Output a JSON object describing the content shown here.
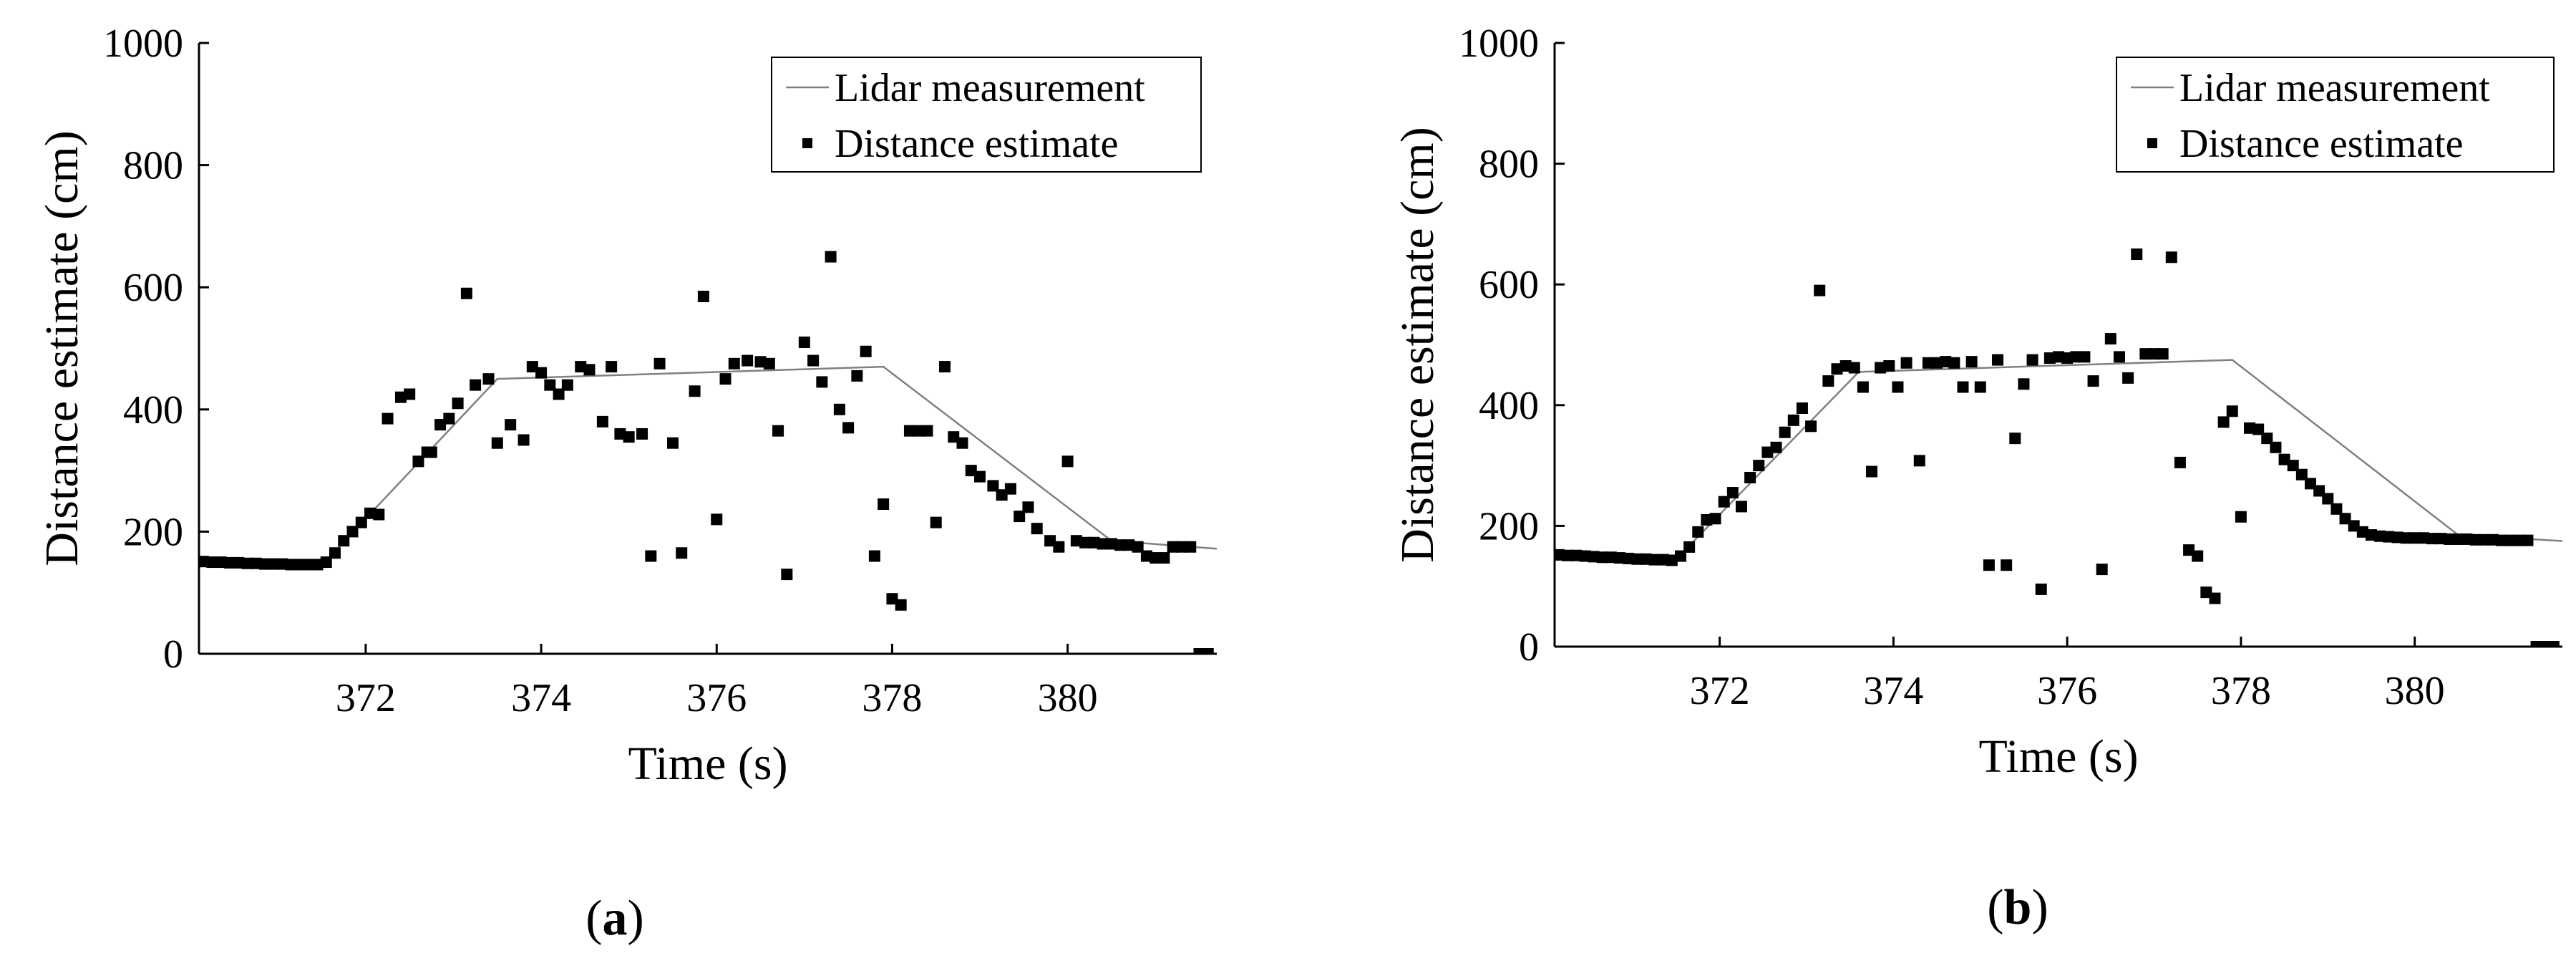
{
  "chart_data": [
    {
      "type": "scatter",
      "panel_label": "a",
      "xlabel": "Time (s)",
      "ylabel": "Distance estimate (cm)",
      "xlim": [
        370.1,
        381.7
      ],
      "ylim": [
        0,
        1000
      ],
      "xticks": [
        372,
        374,
        376,
        378,
        380
      ],
      "yticks": [
        0,
        200,
        400,
        600,
        800,
        1000
      ],
      "grid": false,
      "legend_position": "top-right",
      "series": [
        {
          "name": "Lidar measurement",
          "kind": "line",
          "color": "#808080",
          "x": [
            370.1,
            371.5,
            373.5,
            377.9,
            380.5,
            381.7
          ],
          "y": [
            152,
            145,
            450,
            470,
            185,
            172
          ]
        },
        {
          "name": "Distance estimate",
          "kind": "marker",
          "color": "#000000",
          "x": [
            370.15,
            370.25,
            370.35,
            370.45,
            370.55,
            370.65,
            370.75,
            370.85,
            370.95,
            371.05,
            371.15,
            371.25,
            371.35,
            371.45,
            371.55,
            371.65,
            371.75,
            371.85,
            371.95,
            372.05,
            372.15,
            372.25,
            372.4,
            372.5,
            372.6,
            372.7,
            372.75,
            372.85,
            372.95,
            373.05,
            373.15,
            373.25,
            373.4,
            373.5,
            373.65,
            373.8,
            373.9,
            374.0,
            374.1,
            374.2,
            374.3,
            374.45,
            374.55,
            374.7,
            374.8,
            374.9,
            375.0,
            375.15,
            375.25,
            375.35,
            375.5,
            375.6,
            375.75,
            375.85,
            376.0,
            376.1,
            376.2,
            376.35,
            376.5,
            376.6,
            376.7,
            376.8,
            377.0,
            377.1,
            377.2,
            377.3,
            377.4,
            377.5,
            377.6,
            377.7,
            377.8,
            377.9,
            378.0,
            378.1,
            378.2,
            378.3,
            378.4,
            378.5,
            378.6,
            378.7,
            378.8,
            378.9,
            379.0,
            379.15,
            379.25,
            379.35,
            379.45,
            379.55,
            379.65,
            379.8,
            379.9,
            380.0,
            380.1,
            380.2,
            380.3,
            380.4,
            380.5,
            380.6,
            380.7,
            380.8,
            380.9,
            381.0,
            381.1,
            381.2,
            381.3,
            381.4,
            381.5,
            381.6
          ],
          "y": [
            151,
            150,
            150,
            149,
            149,
            148,
            148,
            147,
            147,
            147,
            146,
            146,
            146,
            146,
            150,
            165,
            185,
            200,
            215,
            230,
            228,
            385,
            420,
            425,
            315,
            330,
            330,
            375,
            385,
            410,
            590,
            440,
            450,
            345,
            375,
            350,
            470,
            460,
            440,
            425,
            440,
            470,
            465,
            380,
            470,
            360,
            355,
            360,
            160,
            475,
            345,
            165,
            430,
            585,
            220,
            450,
            475,
            480,
            478,
            475,
            365,
            130,
            510,
            480,
            445,
            650,
            400,
            370,
            455,
            495,
            160,
            245,
            90,
            80,
            365,
            365,
            365,
            215,
            470,
            355,
            345,
            300,
            290,
            275,
            260,
            270,
            225,
            240,
            205,
            185,
            175,
            315,
            185,
            182,
            182,
            180,
            180,
            178,
            178,
            175,
            160,
            157,
            157,
            175,
            175,
            175,
            0,
            0
          ]
        }
      ]
    },
    {
      "type": "scatter",
      "panel_label": "b",
      "xlabel": "Time (s)",
      "ylabel": "Distance estimate (cm)",
      "xlim": [
        370.1,
        381.7
      ],
      "ylim": [
        0,
        1000
      ],
      "xticks": [
        372,
        374,
        376,
        378,
        380
      ],
      "yticks": [
        0,
        200,
        400,
        600,
        800,
        1000
      ],
      "grid": false,
      "legend_position": "top-right",
      "series": [
        {
          "name": "Lidar measurement",
          "kind": "line",
          "color": "#808080",
          "x": [
            370.1,
            371.5,
            373.6,
            377.9,
            380.5,
            381.7
          ],
          "y": [
            152,
            145,
            455,
            475,
            185,
            175
          ]
        },
        {
          "name": "Distance estimate",
          "kind": "marker",
          "color": "#000000",
          "x": [
            370.15,
            370.25,
            370.35,
            370.45,
            370.55,
            370.65,
            370.75,
            370.85,
            370.95,
            371.05,
            371.15,
            371.25,
            371.35,
            371.45,
            371.55,
            371.65,
            371.75,
            371.85,
            371.95,
            372.05,
            372.15,
            372.25,
            372.35,
            372.45,
            372.55,
            372.65,
            372.75,
            372.85,
            372.95,
            373.05,
            373.15,
            373.25,
            373.35,
            373.45,
            373.55,
            373.65,
            373.75,
            373.85,
            373.95,
            374.05,
            374.15,
            374.3,
            374.4,
            374.5,
            374.6,
            374.7,
            374.8,
            374.9,
            375.0,
            375.1,
            375.2,
            375.3,
            375.4,
            375.5,
            375.6,
            375.7,
            375.8,
            375.9,
            376.0,
            376.1,
            376.2,
            376.3,
            376.4,
            376.5,
            376.6,
            376.7,
            376.8,
            376.9,
            377.0,
            377.1,
            377.2,
            377.3,
            377.4,
            377.5,
            377.6,
            377.7,
            377.8,
            377.9,
            378.0,
            378.1,
            378.2,
            378.3,
            378.4,
            378.5,
            378.6,
            378.7,
            378.8,
            378.9,
            379.0,
            379.1,
            379.2,
            379.3,
            379.4,
            379.5,
            379.6,
            379.7,
            379.8,
            379.9,
            380.0,
            380.1,
            380.2,
            380.3,
            380.4,
            380.5,
            380.6,
            380.7,
            380.8,
            380.9,
            381.0,
            381.1,
            381.2,
            381.3,
            381.4,
            381.5,
            381.6
          ],
          "y": [
            152,
            151,
            151,
            150,
            149,
            148,
            148,
            147,
            146,
            145,
            145,
            144,
            144,
            143,
            150,
            165,
            190,
            210,
            212,
            240,
            255,
            232,
            280,
            300,
            322,
            330,
            355,
            375,
            395,
            365,
            590,
            440,
            460,
            465,
            462,
            430,
            290,
            462,
            465,
            430,
            470,
            308,
            470,
            470,
            472,
            470,
            430,
            472,
            430,
            135,
            475,
            135,
            345,
            435,
            475,
            95,
            478,
            480,
            478,
            480,
            480,
            440,
            128,
            510,
            480,
            445,
            650,
            485,
            485,
            485,
            645,
            305,
            160,
            150,
            90,
            80,
            372,
            390,
            215,
            362,
            360,
            345,
            330,
            310,
            300,
            285,
            270,
            258,
            245,
            228,
            212,
            200,
            190,
            185,
            183,
            182,
            181,
            180,
            180,
            180,
            179,
            179,
            178,
            178,
            178,
            177,
            177,
            177,
            176,
            176,
            176,
            176,
            0,
            0,
            0
          ]
        }
      ]
    }
  ]
}
